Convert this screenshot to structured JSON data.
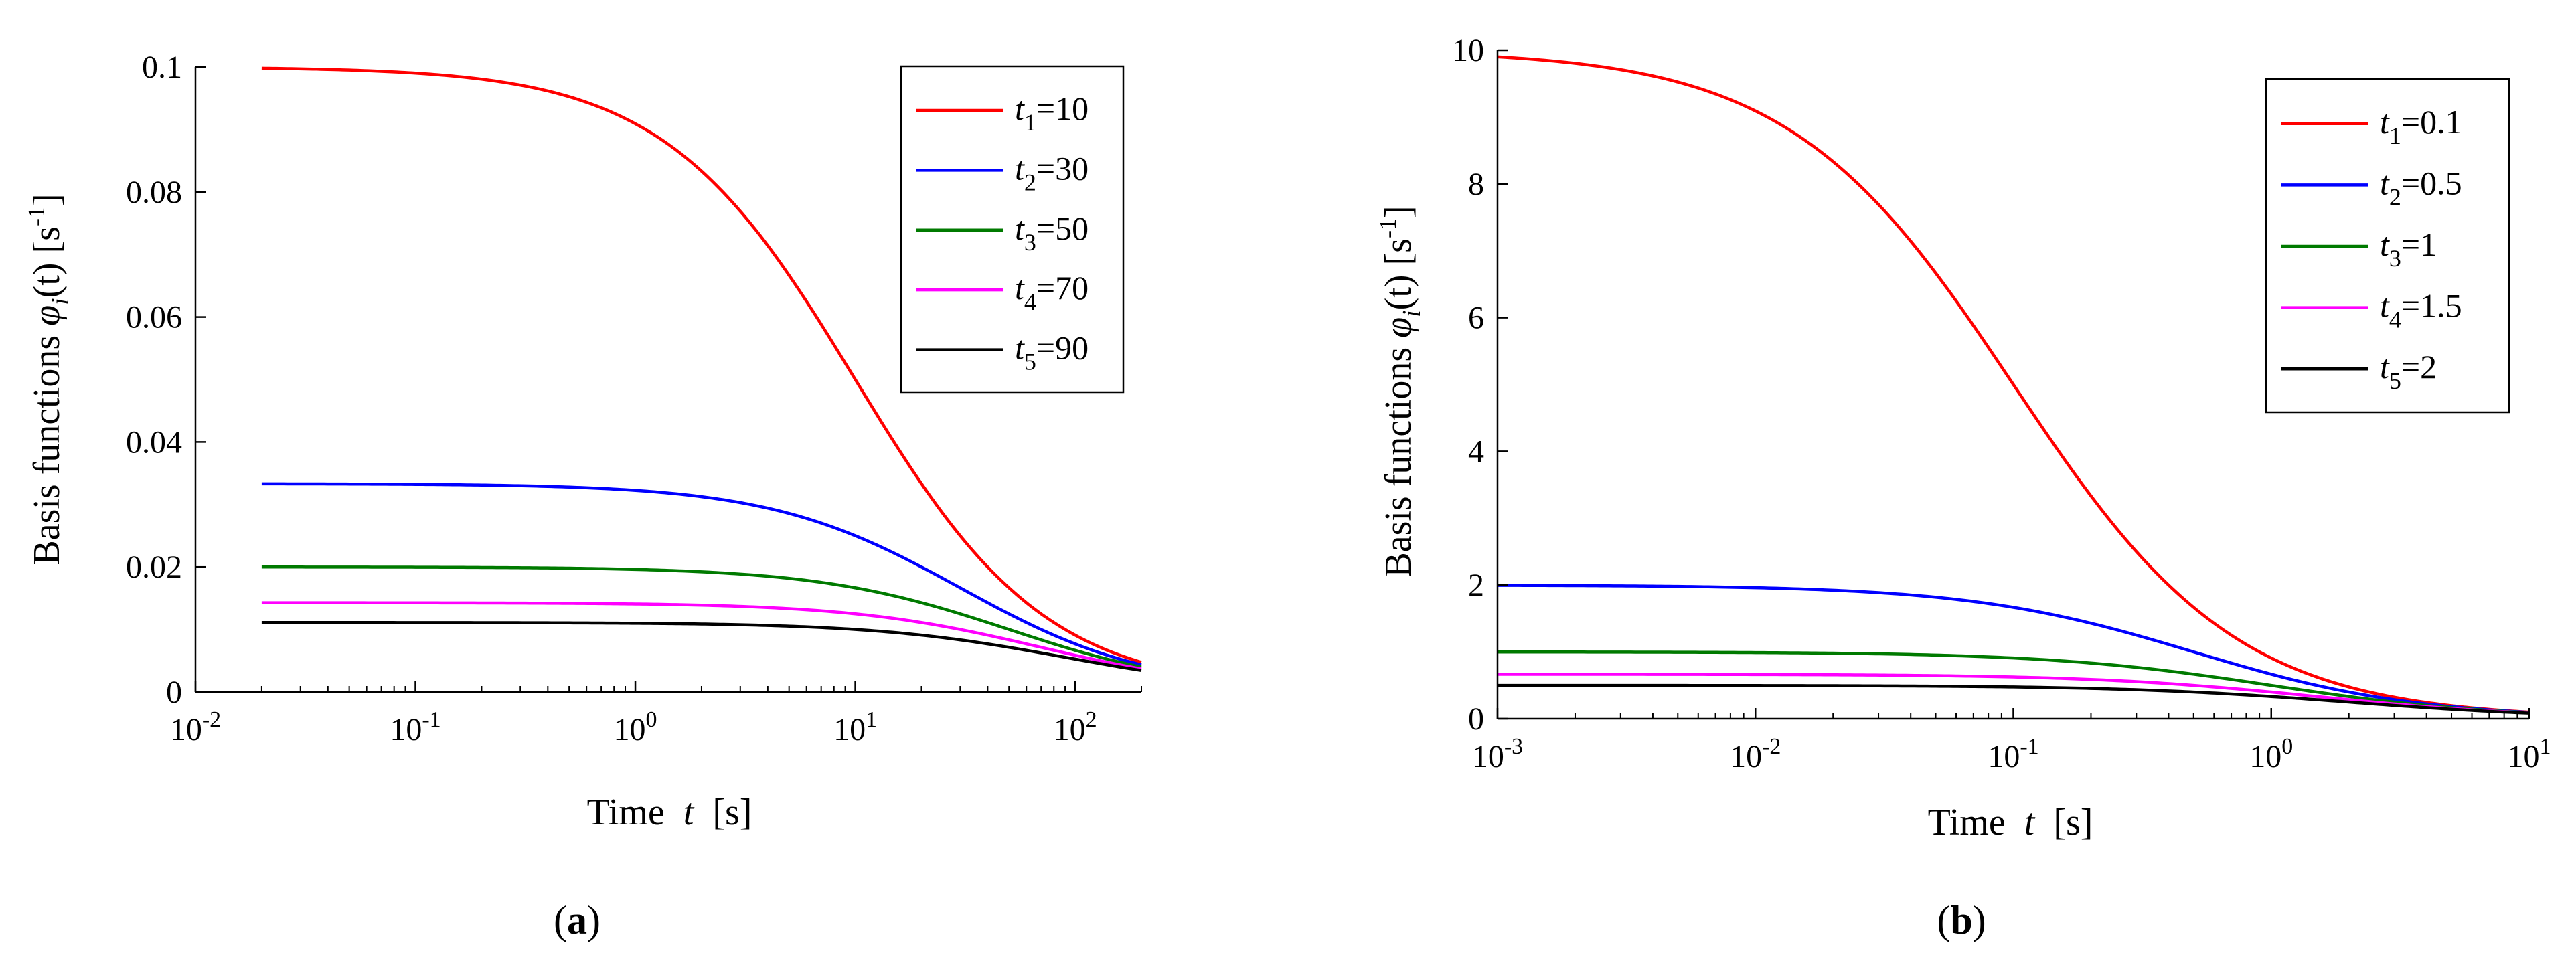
{
  "chart_data": [
    {
      "type": "line",
      "panel_label": "a",
      "xlabel": {
        "prefix": "Time",
        "var": "t",
        "unit": "[s]"
      },
      "ylabel": {
        "prefix": "Basis functions",
        "var": "φ",
        "sub": "i",
        "arg": "(t)",
        "unit_base": "[s",
        "unit_sup": "-1",
        "unit_close": "]"
      },
      "xscale": "log",
      "xlim": [
        0.01,
        200
      ],
      "ylim": [
        0,
        0.1
      ],
      "x_range_plotted": [
        0.02,
        200
      ],
      "xticks": [
        0.01,
        0.1,
        1,
        10,
        100
      ],
      "xtick_labels": [
        {
          "base": "10",
          "exp": "-2"
        },
        {
          "base": "10",
          "exp": "-1"
        },
        {
          "base": "10",
          "exp": "0"
        },
        {
          "base": "10",
          "exp": "1"
        },
        {
          "base": "10",
          "exp": "2"
        }
      ],
      "yticks": [
        0,
        0.02,
        0.04,
        0.06,
        0.08,
        0.1
      ],
      "ytick_labels": [
        "0",
        "0.02",
        "0.04",
        "0.06",
        "0.08",
        "0.1"
      ],
      "legend_position": "top-right",
      "series": [
        {
          "var": "t",
          "sub": "1",
          "value": "=10",
          "tau": 10,
          "color": "#ff0000"
        },
        {
          "var": "t",
          "sub": "2",
          "value": "=30",
          "tau": 30,
          "color": "#0000ff"
        },
        {
          "var": "t",
          "sub": "3",
          "value": "=50",
          "tau": 50,
          "color": "#007a00"
        },
        {
          "var": "t",
          "sub": "4",
          "value": "=70",
          "tau": 70,
          "color": "#ff00ff"
        },
        {
          "var": "t",
          "sub": "5",
          "value": "=90",
          "tau": 90,
          "color": "#000000"
        }
      ]
    },
    {
      "type": "line",
      "panel_label": "b",
      "xlabel": {
        "prefix": "Time",
        "var": "t",
        "unit": "[s]"
      },
      "ylabel": {
        "prefix": "Basis functions",
        "var": "φ",
        "sub": "i",
        "arg": "(t)",
        "unit_base": "[s",
        "unit_sup": "-1",
        "unit_close": "]"
      },
      "xscale": "log",
      "xlim": [
        0.001,
        10
      ],
      "ylim": [
        0,
        10
      ],
      "x_range_plotted": [
        0.001,
        10
      ],
      "xticks": [
        0.001,
        0.01,
        0.1,
        1,
        10
      ],
      "xtick_labels": [
        {
          "base": "10",
          "exp": "-3"
        },
        {
          "base": "10",
          "exp": "-2"
        },
        {
          "base": "10",
          "exp": "-1"
        },
        {
          "base": "10",
          "exp": "0"
        },
        {
          "base": "10",
          "exp": "1"
        }
      ],
      "yticks": [
        0,
        2,
        4,
        6,
        8,
        10
      ],
      "ytick_labels": [
        "0",
        "2",
        "4",
        "6",
        "8",
        "10"
      ],
      "legend_position": "top-right",
      "series": [
        {
          "var": "t",
          "sub": "1",
          "value": "=0.1",
          "tau": 0.1,
          "color": "#ff0000"
        },
        {
          "var": "t",
          "sub": "2",
          "value": "=0.5",
          "tau": 0.5,
          "color": "#0000ff"
        },
        {
          "var": "t",
          "sub": "3",
          "value": "=1",
          "tau": 1,
          "color": "#007a00"
        },
        {
          "var": "t",
          "sub": "4",
          "value": "=1.5",
          "tau": 1.5,
          "color": "#ff00ff"
        },
        {
          "var": "t",
          "sub": "5",
          "value": "=2",
          "tau": 2,
          "color": "#000000"
        }
      ]
    }
  ]
}
